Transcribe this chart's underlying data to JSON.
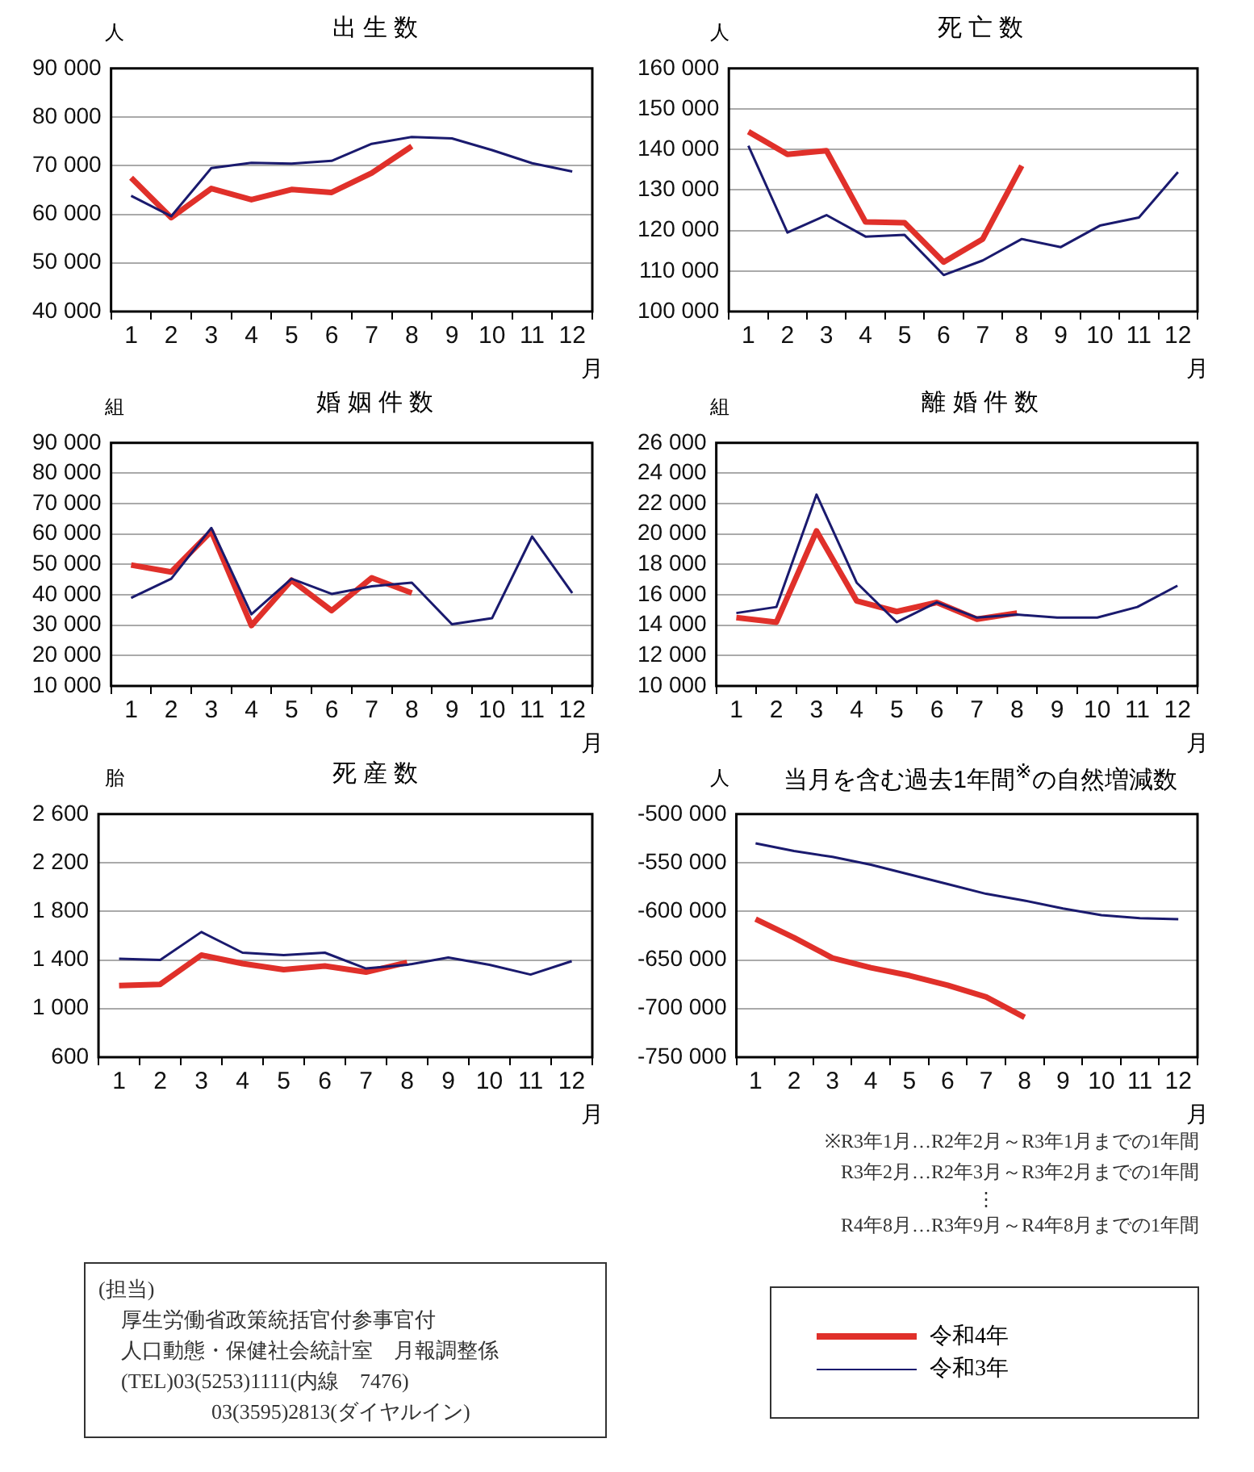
{
  "chart_data": [
    {
      "type": "line",
      "title": "出 生 数",
      "ylabel": "人",
      "xlabel": "月",
      "categories": [
        "1",
        "2",
        "3",
        "4",
        "5",
        "6",
        "7",
        "8",
        "9",
        "10",
        "11",
        "12"
      ],
      "ylim": [
        40000,
        90000
      ],
      "yticks": [
        {
          "value": 40000,
          "label": "40 000"
        },
        {
          "value": 50000,
          "label": "50 000"
        },
        {
          "value": 60000,
          "label": "60 000"
        },
        {
          "value": 70000,
          "label": "70 000"
        },
        {
          "value": 80000,
          "label": "80 000"
        },
        {
          "value": 90000,
          "label": "90 000"
        }
      ],
      "grid": "y",
      "marker": "none",
      "legend": false,
      "series": [
        {
          "color": "#e0302a",
          "values": [
            67500,
            59300,
            65300,
            63000,
            65100,
            64500,
            68500,
            74000,
            null,
            null,
            null,
            null
          ]
        },
        {
          "color": "#1a1a6e",
          "values": [
            63800,
            59600,
            69500,
            70600,
            70400,
            71000,
            74500,
            75900,
            75600,
            73200,
            70500,
            68800
          ]
        }
      ]
    },
    {
      "type": "line",
      "title": "死 亡 数",
      "ylabel": "人",
      "xlabel": "月",
      "categories": [
        "1",
        "2",
        "3",
        "4",
        "5",
        "6",
        "7",
        "8",
        "9",
        "10",
        "11",
        "12"
      ],
      "ylim": [
        100000,
        160000
      ],
      "yticks": [
        {
          "value": 100000,
          "label": "100 000"
        },
        {
          "value": 110000,
          "label": "110 000"
        },
        {
          "value": 120000,
          "label": "120 000"
        },
        {
          "value": 130000,
          "label": "130 000"
        },
        {
          "value": 140000,
          "label": "140 000"
        },
        {
          "value": 150000,
          "label": "150 000"
        },
        {
          "value": 160000,
          "label": "160 000"
        }
      ],
      "grid": "y",
      "marker": "none",
      "legend": false,
      "series": [
        {
          "color": "#e0302a",
          "values": [
            144400,
            138800,
            139700,
            122100,
            121900,
            112200,
            117900,
            136000,
            null,
            null,
            null,
            null
          ]
        },
        {
          "color": "#1a1a6e",
          "values": [
            140900,
            119500,
            123800,
            118500,
            118900,
            109000,
            112600,
            117900,
            115900,
            121200,
            123200,
            134400
          ]
        }
      ]
    },
    {
      "type": "line",
      "title": "婚 姻 件 数",
      "ylabel": "組",
      "xlabel": "月",
      "categories": [
        "1",
        "2",
        "3",
        "4",
        "5",
        "6",
        "7",
        "8",
        "9",
        "10",
        "11",
        "12"
      ],
      "ylim": [
        10000,
        90000
      ],
      "yticks": [
        {
          "value": 10000,
          "label": "10 000"
        },
        {
          "value": 20000,
          "label": "20 000"
        },
        {
          "value": 30000,
          "label": "30 000"
        },
        {
          "value": 40000,
          "label": "40 000"
        },
        {
          "value": 50000,
          "label": "50 000"
        },
        {
          "value": 60000,
          "label": "60 000"
        },
        {
          "value": 70000,
          "label": "70 000"
        },
        {
          "value": 80000,
          "label": "80 000"
        },
        {
          "value": 90000,
          "label": "90 000"
        }
      ],
      "grid": "y",
      "marker": "none",
      "legend": false,
      "series": [
        {
          "color": "#e0302a",
          "values": [
            49800,
            47500,
            60900,
            29900,
            44800,
            34800,
            45600,
            40600,
            null,
            null,
            null,
            null
          ]
        },
        {
          "color": "#1a1a6e",
          "values": [
            39000,
            45300,
            62000,
            33600,
            45300,
            40300,
            42800,
            44000,
            30300,
            32300,
            59200,
            40600
          ]
        }
      ]
    },
    {
      "type": "line",
      "title": "離 婚 件 数",
      "ylabel": "組",
      "xlabel": "月",
      "categories": [
        "1",
        "2",
        "3",
        "4",
        "5",
        "6",
        "7",
        "8",
        "9",
        "10",
        "11",
        "12"
      ],
      "ylim": [
        10000,
        26000
      ],
      "yticks": [
        {
          "value": 10000,
          "label": "10 000"
        },
        {
          "value": 12000,
          "label": "12 000"
        },
        {
          "value": 14000,
          "label": "14 000"
        },
        {
          "value": 16000,
          "label": "16 000"
        },
        {
          "value": 18000,
          "label": "18 000"
        },
        {
          "value": 20000,
          "label": "20 000"
        },
        {
          "value": 22000,
          "label": "22 000"
        },
        {
          "value": 24000,
          "label": "24 000"
        },
        {
          "value": 26000,
          "label": "26 000"
        }
      ],
      "grid": "y",
      "marker": "none",
      "legend": false,
      "series": [
        {
          "color": "#e0302a",
          "values": [
            14500,
            14200,
            20200,
            15600,
            14900,
            15500,
            14400,
            14800,
            null,
            null,
            null,
            null
          ]
        },
        {
          "color": "#1a1a6e",
          "values": [
            14800,
            15200,
            22600,
            16800,
            14200,
            15500,
            14500,
            14700,
            14500,
            14500,
            15200,
            16600
          ]
        }
      ]
    },
    {
      "type": "line",
      "title": "死 産 数",
      "ylabel": "胎",
      "xlabel": "月",
      "categories": [
        "1",
        "2",
        "3",
        "4",
        "5",
        "6",
        "7",
        "8",
        "9",
        "10",
        "11",
        "12"
      ],
      "ylim": [
        600,
        2600
      ],
      "yticks": [
        600,
        {
          "value": 1000,
          "label": "1 000"
        },
        {
          "value": 1400,
          "label": "1 400"
        },
        {
          "value": 1800,
          "label": "1 800"
        },
        {
          "value": 2200,
          "label": "2 200"
        },
        {
          "value": 2600,
          "label": "2 600"
        }
      ],
      "grid": "y",
      "marker": "none",
      "legend": false,
      "annotations": [
        "(担当)",
        "厚生労働省政策統括官付参事官付",
        "人口動態・保健社会統計室　月報調整係",
        "(TEL)03(5253)1111(内線　7476)",
        "03(3595)2813(ダイヤルイン)"
      ],
      "series": [
        {
          "color": "#e0302a",
          "values": [
            1190,
            1200,
            1440,
            1370,
            1320,
            1350,
            1300,
            1380,
            null,
            null,
            null,
            null
          ]
        },
        {
          "color": "#1a1a6e",
          "values": [
            1410,
            1400,
            1630,
            1460,
            1440,
            1460,
            1330,
            1360,
            1420,
            1360,
            1280,
            1390
          ]
        }
      ]
    },
    {
      "type": "line",
      "title": "当月を含む過去1年間$^{※}$の自然増減数",
      "ylabel": "人",
      "xlabel": "月",
      "categories": [
        "1",
        "2",
        "3",
        "4",
        "5",
        "6",
        "7",
        "8",
        "9",
        "10",
        "11",
        "12"
      ],
      "ylim": [
        -750000,
        -500000
      ],
      "yticks": [
        {
          "value": -750000,
          "label": "-750 000"
        },
        {
          "value": -700000,
          "label": "-700 000"
        },
        {
          "value": -650000,
          "label": "-650 000"
        },
        {
          "value": -600000,
          "label": "-600 000"
        },
        {
          "value": -550000,
          "label": "-550 000"
        },
        {
          "value": -500000,
          "label": "-500 000"
        }
      ],
      "grid": "y",
      "marker": "none",
      "legend": "bottom",
      "annotations": [
        "※R3年1月…R2年2月～R3年1月までの1年間",
        "R3年2月…R2年3月～R3年2月までの1年間",
        "⋮",
        "R4年8月…R3年9月～R4年8月までの1年間"
      ],
      "series": [
        {
          "name": "令和4年",
          "color": "#e0302a",
          "values": [
            -608000,
            -627000,
            -648000,
            -658000,
            -666000,
            -676000,
            -688000,
            -709000,
            null,
            null,
            null,
            null
          ]
        },
        {
          "name": "令和3年",
          "color": "#1a1a6e",
          "values": [
            -530000,
            -538000,
            -544000,
            -552000,
            -562000,
            -572000,
            -582000,
            -589000,
            -597000,
            -604000,
            -607000,
            -608000
          ]
        }
      ]
    }
  ]
}
